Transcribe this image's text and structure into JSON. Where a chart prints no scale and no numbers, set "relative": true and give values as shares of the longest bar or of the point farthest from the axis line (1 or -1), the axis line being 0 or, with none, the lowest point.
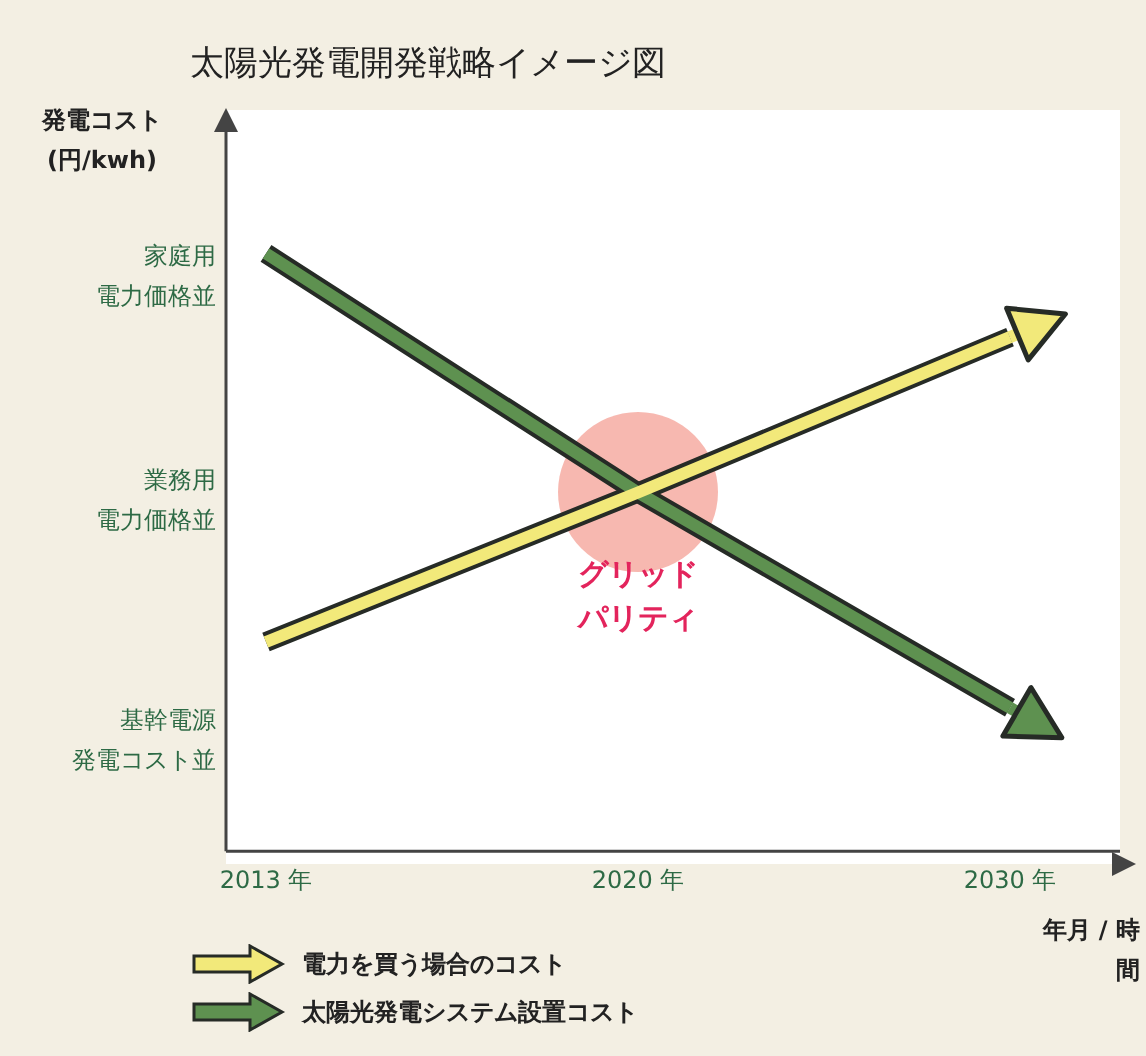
{
  "chart_data": {
    "type": "line",
    "title": "太陽光発電開発戦略イメージ図",
    "xlabel": "年月 / 時間",
    "ylabel": "発電コスト (円/kwh)",
    "relative": true,
    "categories": [
      "2013 年",
      "2020 年",
      "2030 年"
    ],
    "series": [
      {
        "name": "電力を買う場合のコスト",
        "color": "#f2e97a",
        "values": [
          0.35,
          0.6,
          0.86
        ]
      },
      {
        "name": "太陽光発電システム設置コスト",
        "color": "#5e9150",
        "values": [
          1,
          0.6,
          0.24
        ]
      }
    ],
    "annotations": [
      "家庭用",
      "電力価格並",
      "業務用",
      "電力価格並",
      "基幹電源",
      "発電コスト並",
      {
        "text": "グリッドパリティ",
        "x": "2020 年",
        "y": 0.6
      }
    ],
    "legend": "bottom left",
    "marker": "none",
    "line_style": "solid",
    "grid": false
  }
}
